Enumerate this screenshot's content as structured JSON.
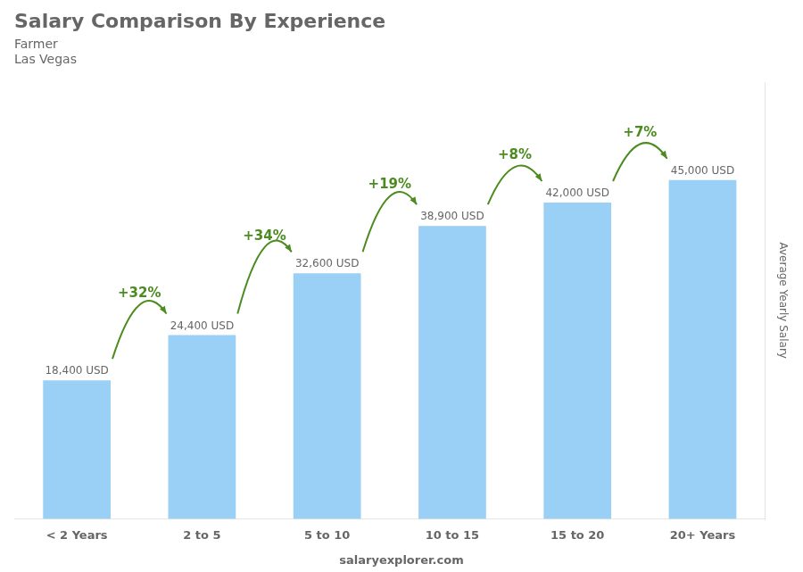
{
  "chart_data": {
    "type": "bar",
    "title": "Salary Comparison By Experience",
    "subtitle": [
      "Farmer",
      "Las Vegas"
    ],
    "ylabel": "Average Yearly Salary",
    "categories": [
      "< 2 Years",
      "2 to 5",
      "5 to 10",
      "10 to 15",
      "15 to 20",
      "20+ Years"
    ],
    "values": [
      18400,
      24400,
      32600,
      38900,
      42000,
      45000
    ],
    "value_labels": [
      "18,400 USD",
      "24,400 USD",
      "32,600 USD",
      "38,900 USD",
      "42,000 USD",
      "45,000 USD"
    ],
    "data_labels": true,
    "annotations": [
      "+32%",
      "+34%",
      "+19%",
      "+8%",
      "+7%"
    ],
    "footer": "salaryexplorer.com",
    "ylim": [
      0,
      58000
    ],
    "tick_labels": "x",
    "grid": false
  }
}
